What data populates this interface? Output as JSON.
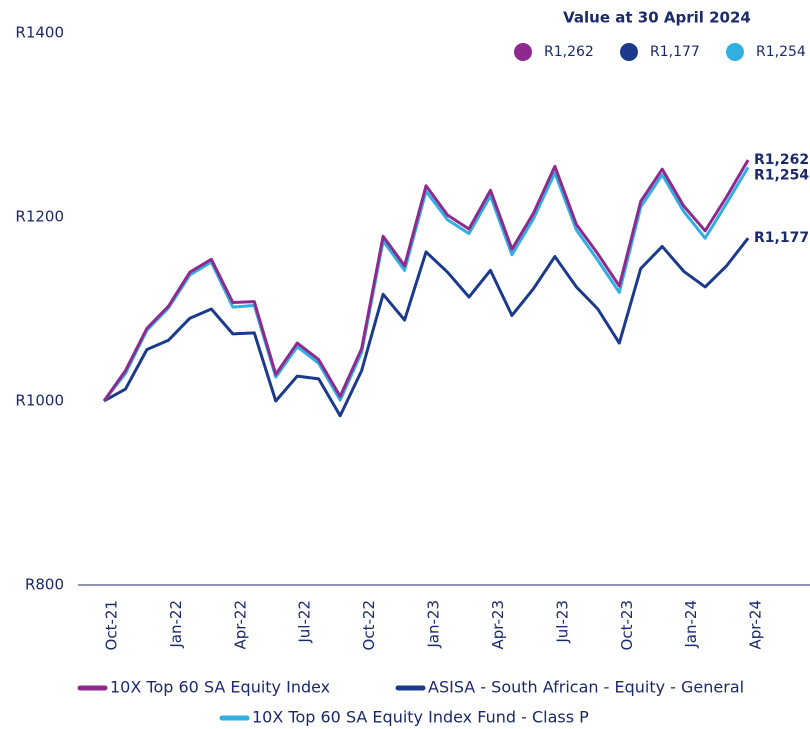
{
  "chart_data": {
    "type": "line",
    "legend_title": "Value at 30 April 2024",
    "categories": [
      "Oct-21",
      null,
      null,
      "Jan-22",
      null,
      null,
      "Apr-22",
      null,
      null,
      "Jul-22",
      null,
      null,
      "Oct-22",
      null,
      null,
      "Jan-23",
      null,
      null,
      "Apr-23",
      null,
      null,
      "Jul-23",
      null,
      null,
      "Oct-23",
      null,
      null,
      "Jan-24",
      null,
      null,
      "Apr-24"
    ],
    "ylim": [
      800,
      1400
    ],
    "yticks": [
      {
        "value": 800,
        "label": "R800"
      },
      {
        "value": 1000,
        "label": "R1000"
      },
      {
        "value": 1200,
        "label": "R1200"
      },
      {
        "value": 1400,
        "label": "R1400"
      }
    ],
    "grid": false,
    "series": [
      {
        "name": "10X Top 60 SA Equity Index",
        "color": "#8e2a8e",
        "end_label": "R1,262",
        "values": [
          1000,
          1033,
          1079,
          1103,
          1140,
          1154,
          1107,
          1108,
          1029,
          1063,
          1045,
          1005,
          1057,
          1179,
          1147,
          1234,
          1202,
          1187,
          1229,
          1165,
          1204,
          1255,
          1192,
          1160,
          1125,
          1217,
          1252,
          1212,
          1185,
          1222,
          1262
        ]
      },
      {
        "name": "ASISA - South African - Equity - General",
        "color": "#1b3a8c",
        "end_label": "R1,177",
        "values": [
          1000,
          1013,
          1056,
          1066,
          1090,
          1100,
          1073,
          1074,
          1000,
          1027,
          1024,
          984,
          1033,
          1116,
          1088,
          1162,
          1140,
          1113,
          1142,
          1093,
          1122,
          1157,
          1124,
          1100,
          1063,
          1144,
          1168,
          1141,
          1124,
          1147,
          1177
        ]
      },
      {
        "name": "10X Top 60 SA Equity Index Fund - Class P",
        "color": "#33aee0",
        "end_label": "R1,254",
        "values": [
          1000,
          1030,
          1077,
          1101,
          1137,
          1151,
          1102,
          1104,
          1026,
          1059,
          1041,
          1001,
          1053,
          1174,
          1142,
          1228,
          1197,
          1182,
          1223,
          1159,
          1198,
          1248,
          1186,
          1153,
          1118,
          1211,
          1246,
          1206,
          1177,
          1215,
          1254
        ]
      }
    ]
  }
}
